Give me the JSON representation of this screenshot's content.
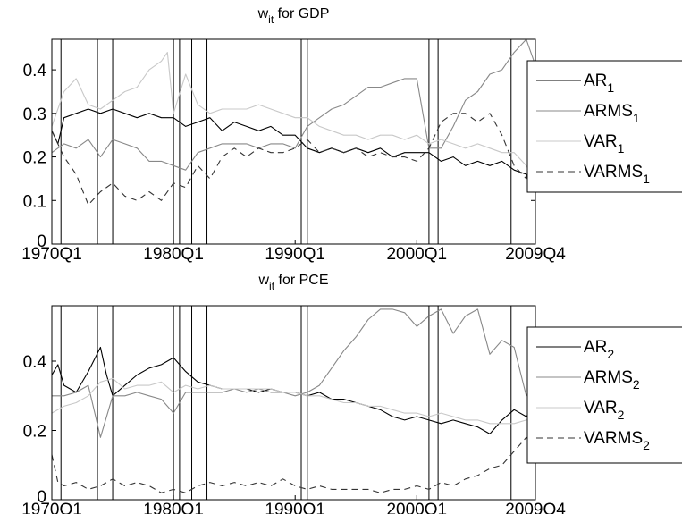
{
  "chart_data": [
    {
      "type": "line",
      "title": "w",
      "title_sub": "it",
      "title_suffix": " for GDP",
      "xlabel": "",
      "ylabel": "",
      "x_range": [
        1970.0,
        2009.75
      ],
      "ylim": [
        0,
        0.47
      ],
      "y_ticks": [
        0,
        0.1,
        0.2,
        0.3,
        0.4
      ],
      "y_tick_labels": [
        "0",
        "0.1",
        "0.2",
        "0.3",
        "0.4"
      ],
      "x_ticks": [
        1970.0,
        1980.0,
        1990.0,
        2000.0,
        2009.75
      ],
      "x_tick_labels": [
        "1970Q1",
        "1980Q1",
        "1990Q1",
        "2000Q1",
        "2009Q4"
      ],
      "grid": false,
      "legend_position": "outside-right",
      "event_lines": [
        1970.75,
        1973.75,
        1975.0,
        1980.0,
        1980.5,
        1981.5,
        1982.75,
        1990.5,
        1991.0,
        2001.0,
        2001.75,
        2007.75
      ],
      "series": [
        {
          "name": "AR",
          "sub": "1",
          "color": "#000000",
          "dash": "none",
          "x": [
            1970.0,
            1970.5,
            1971.0,
            1972.0,
            1973.0,
            1974.0,
            1975.0,
            1976.0,
            1977.0,
            1978.0,
            1979.0,
            1980.0,
            1981.0,
            1982.0,
            1983.0,
            1984.0,
            1985.0,
            1986.0,
            1987.0,
            1988.0,
            1989.0,
            1990.0,
            1991.0,
            1992.0,
            1993.0,
            1994.0,
            1995.0,
            1996.0,
            1997.0,
            1998.0,
            1999.0,
            2000.0,
            2001.0,
            2002.0,
            2003.0,
            2004.0,
            2005.0,
            2006.0,
            2007.0,
            2008.0,
            2009.0,
            2009.75
          ],
          "y": [
            0.26,
            0.23,
            0.29,
            0.3,
            0.31,
            0.3,
            0.31,
            0.3,
            0.29,
            0.3,
            0.29,
            0.29,
            0.27,
            0.28,
            0.29,
            0.26,
            0.28,
            0.27,
            0.26,
            0.27,
            0.25,
            0.25,
            0.22,
            0.21,
            0.22,
            0.21,
            0.22,
            0.21,
            0.22,
            0.2,
            0.21,
            0.21,
            0.21,
            0.19,
            0.2,
            0.18,
            0.19,
            0.18,
            0.19,
            0.17,
            0.16,
            0.15
          ]
        },
        {
          "name": "ARMS",
          "sub": "1",
          "color": "#888888",
          "dash": "none",
          "x": [
            1970.0,
            1971.0,
            1972.0,
            1973.0,
            1974.0,
            1975.0,
            1976.0,
            1977.0,
            1978.0,
            1979.0,
            1980.0,
            1981.0,
            1982.0,
            1983.0,
            1984.0,
            1985.0,
            1986.0,
            1987.0,
            1988.0,
            1989.0,
            1990.0,
            1991.0,
            1992.0,
            1993.0,
            1994.0,
            1995.0,
            1996.0,
            1997.0,
            1998.0,
            1999.0,
            2000.0,
            2001.0,
            2002.0,
            2003.0,
            2004.0,
            2005.0,
            2006.0,
            2007.0,
            2008.0,
            2009.0,
            2009.75
          ],
          "y": [
            0.21,
            0.23,
            0.22,
            0.24,
            0.2,
            0.24,
            0.23,
            0.22,
            0.19,
            0.19,
            0.18,
            0.17,
            0.21,
            0.22,
            0.23,
            0.23,
            0.23,
            0.22,
            0.23,
            0.23,
            0.22,
            0.27,
            0.29,
            0.31,
            0.32,
            0.34,
            0.36,
            0.36,
            0.37,
            0.38,
            0.38,
            0.22,
            0.22,
            0.27,
            0.33,
            0.35,
            0.39,
            0.4,
            0.44,
            0.47,
            0.41
          ]
        },
        {
          "name": "VAR",
          "sub": "1",
          "color": "#c8c8c8",
          "dash": "none",
          "x": [
            1970.0,
            1971.0,
            1972.0,
            1973.0,
            1974.0,
            1975.0,
            1976.0,
            1977.0,
            1978.0,
            1979.0,
            1979.5,
            1980.0,
            1981.0,
            1982.0,
            1983.0,
            1984.0,
            1985.0,
            1986.0,
            1987.0,
            1988.0,
            1989.0,
            1990.0,
            1991.0,
            1992.0,
            1993.0,
            1994.0,
            1995.0,
            1996.0,
            1997.0,
            1998.0,
            1999.0,
            2000.0,
            2001.0,
            2002.0,
            2003.0,
            2004.0,
            2005.0,
            2006.0,
            2007.0,
            2008.0,
            2009.0,
            2009.75
          ],
          "y": [
            0.27,
            0.35,
            0.38,
            0.32,
            0.31,
            0.33,
            0.35,
            0.36,
            0.4,
            0.42,
            0.44,
            0.3,
            0.39,
            0.32,
            0.3,
            0.31,
            0.31,
            0.31,
            0.32,
            0.31,
            0.3,
            0.29,
            0.29,
            0.27,
            0.26,
            0.25,
            0.25,
            0.24,
            0.25,
            0.25,
            0.24,
            0.25,
            0.23,
            0.24,
            0.23,
            0.22,
            0.23,
            0.22,
            0.21,
            0.21,
            0.18,
            0.14
          ]
        },
        {
          "name": "VARMS",
          "sub": "1",
          "color": "#333333",
          "dash": "7,5",
          "x": [
            1970.0,
            1971.0,
            1972.0,
            1973.0,
            1974.0,
            1975.0,
            1976.0,
            1977.0,
            1978.0,
            1979.0,
            1980.0,
            1981.0,
            1982.0,
            1983.0,
            1984.0,
            1985.0,
            1986.0,
            1987.0,
            1988.0,
            1989.0,
            1990.0,
            1991.0,
            1992.0,
            1993.0,
            1994.0,
            1995.0,
            1996.0,
            1997.0,
            1998.0,
            1999.0,
            2000.0,
            2001.0,
            2002.0,
            2003.0,
            2004.0,
            2005.0,
            2006.0,
            2007.0,
            2008.0,
            2009.0,
            2009.75
          ],
          "y": [
            0.26,
            0.2,
            0.16,
            0.09,
            0.12,
            0.14,
            0.11,
            0.1,
            0.12,
            0.1,
            0.14,
            0.13,
            0.18,
            0.15,
            0.2,
            0.22,
            0.2,
            0.22,
            0.21,
            0.21,
            0.22,
            0.24,
            0.21,
            0.22,
            0.21,
            0.22,
            0.2,
            0.21,
            0.2,
            0.2,
            0.19,
            0.22,
            0.28,
            0.3,
            0.3,
            0.28,
            0.3,
            0.25,
            0.18,
            0.15,
            0.26
          ]
        }
      ]
    },
    {
      "type": "line",
      "title": "w",
      "title_sub": "it",
      "title_suffix": " for PCE",
      "xlabel": "",
      "ylabel": "",
      "x_range": [
        1970.0,
        2009.75
      ],
      "ylim": [
        0,
        0.56
      ],
      "y_ticks": [
        0,
        0.2,
        0.4
      ],
      "y_tick_labels": [
        "0",
        "0.2",
        "0.4"
      ],
      "x_ticks": [
        1970.0,
        1980.0,
        1990.0,
        2000.0,
        2009.75
      ],
      "x_tick_labels": [
        "1970Q1",
        "1980Q1",
        "1990Q1",
        "2000Q1",
        "2009Q4"
      ],
      "grid": false,
      "legend_position": "outside-right",
      "event_lines": [
        1970.75,
        1973.75,
        1975.0,
        1980.0,
        1980.5,
        1981.5,
        1982.75,
        1990.5,
        1991.0,
        2001.0,
        2001.75,
        2007.75
      ],
      "series": [
        {
          "name": "AR",
          "sub": "2",
          "color": "#000000",
          "dash": "none",
          "x": [
            1970.0,
            1970.5,
            1971.0,
            1972.0,
            1973.0,
            1974.0,
            1974.5,
            1975.0,
            1976.0,
            1977.0,
            1978.0,
            1979.0,
            1980.0,
            1981.0,
            1982.0,
            1983.0,
            1984.0,
            1985.0,
            1986.0,
            1987.0,
            1988.0,
            1989.0,
            1990.0,
            1991.0,
            1992.0,
            1993.0,
            1994.0,
            1995.0,
            1996.0,
            1997.0,
            1998.0,
            1999.0,
            2000.0,
            2001.0,
            2002.0,
            2003.0,
            2004.0,
            2005.0,
            2006.0,
            2007.0,
            2008.0,
            2009.0,
            2009.75
          ],
          "y": [
            0.36,
            0.39,
            0.33,
            0.31,
            0.37,
            0.44,
            0.36,
            0.3,
            0.33,
            0.36,
            0.38,
            0.39,
            0.41,
            0.37,
            0.34,
            0.33,
            0.32,
            0.32,
            0.32,
            0.31,
            0.32,
            0.31,
            0.31,
            0.3,
            0.31,
            0.29,
            0.29,
            0.28,
            0.27,
            0.26,
            0.24,
            0.23,
            0.24,
            0.23,
            0.22,
            0.23,
            0.22,
            0.21,
            0.19,
            0.23,
            0.26,
            0.24,
            0.27
          ]
        },
        {
          "name": "ARMS",
          "sub": "2",
          "color": "#888888",
          "dash": "none",
          "x": [
            1970.0,
            1971.0,
            1972.0,
            1973.0,
            1974.0,
            1975.0,
            1976.0,
            1977.0,
            1978.0,
            1979.0,
            1980.0,
            1981.0,
            1982.0,
            1983.0,
            1984.0,
            1985.0,
            1986.0,
            1987.0,
            1988.0,
            1989.0,
            1990.0,
            1991.0,
            1992.0,
            1993.0,
            1994.0,
            1995.0,
            1996.0,
            1997.0,
            1998.0,
            1999.0,
            2000.0,
            2001.0,
            2002.0,
            2003.0,
            2004.0,
            2005.0,
            2006.0,
            2007.0,
            2008.0,
            2009.0,
            2009.75
          ],
          "y": [
            0.3,
            0.3,
            0.31,
            0.33,
            0.18,
            0.3,
            0.3,
            0.31,
            0.3,
            0.29,
            0.25,
            0.31,
            0.31,
            0.31,
            0.31,
            0.32,
            0.31,
            0.32,
            0.31,
            0.31,
            0.3,
            0.31,
            0.33,
            0.38,
            0.43,
            0.47,
            0.52,
            0.55,
            0.55,
            0.54,
            0.5,
            0.53,
            0.55,
            0.48,
            0.53,
            0.55,
            0.42,
            0.46,
            0.44,
            0.3,
            0.36
          ]
        },
        {
          "name": "VAR",
          "sub": "2",
          "color": "#c8c8c8",
          "dash": "none",
          "x": [
            1970.0,
            1971.0,
            1972.0,
            1973.0,
            1974.0,
            1975.0,
            1976.0,
            1977.0,
            1978.0,
            1979.0,
            1980.0,
            1981.0,
            1982.0,
            1983.0,
            1984.0,
            1985.0,
            1986.0,
            1987.0,
            1988.0,
            1989.0,
            1990.0,
            1991.0,
            1992.0,
            1993.0,
            1994.0,
            1995.0,
            1996.0,
            1997.0,
            1998.0,
            1999.0,
            2000.0,
            2001.0,
            2002.0,
            2003.0,
            2004.0,
            2005.0,
            2006.0,
            2007.0,
            2008.0,
            2009.0,
            2009.75
          ],
          "y": [
            0.25,
            0.27,
            0.28,
            0.3,
            0.34,
            0.35,
            0.32,
            0.33,
            0.33,
            0.34,
            0.31,
            0.33,
            0.32,
            0.33,
            0.32,
            0.32,
            0.32,
            0.32,
            0.32,
            0.31,
            0.31,
            0.3,
            0.3,
            0.29,
            0.28,
            0.28,
            0.27,
            0.27,
            0.26,
            0.25,
            0.25,
            0.24,
            0.25,
            0.24,
            0.23,
            0.23,
            0.22,
            0.22,
            0.22,
            0.23,
            0.24
          ]
        },
        {
          "name": "VARMS",
          "sub": "2",
          "color": "#333333",
          "dash": "7,5",
          "x": [
            1970.0,
            1970.5,
            1971.0,
            1972.0,
            1973.0,
            1974.0,
            1975.0,
            1976.0,
            1977.0,
            1978.0,
            1979.0,
            1980.0,
            1981.0,
            1982.0,
            1983.0,
            1984.0,
            1985.0,
            1986.0,
            1987.0,
            1988.0,
            1989.0,
            1990.0,
            1991.0,
            1992.0,
            1993.0,
            1994.0,
            1995.0,
            1996.0,
            1997.0,
            1998.0,
            1999.0,
            2000.0,
            2001.0,
            2002.0,
            2003.0,
            2004.0,
            2005.0,
            2006.0,
            2007.0,
            2008.0,
            2009.0,
            2009.75
          ],
          "y": [
            0.13,
            0.05,
            0.04,
            0.05,
            0.03,
            0.04,
            0.06,
            0.04,
            0.05,
            0.04,
            0.02,
            0.03,
            0.02,
            0.04,
            0.05,
            0.04,
            0.05,
            0.04,
            0.05,
            0.04,
            0.06,
            0.04,
            0.03,
            0.04,
            0.03,
            0.03,
            0.03,
            0.03,
            0.02,
            0.03,
            0.03,
            0.04,
            0.03,
            0.05,
            0.04,
            0.06,
            0.07,
            0.09,
            0.1,
            0.14,
            0.18,
            0.15
          ]
        }
      ]
    }
  ]
}
